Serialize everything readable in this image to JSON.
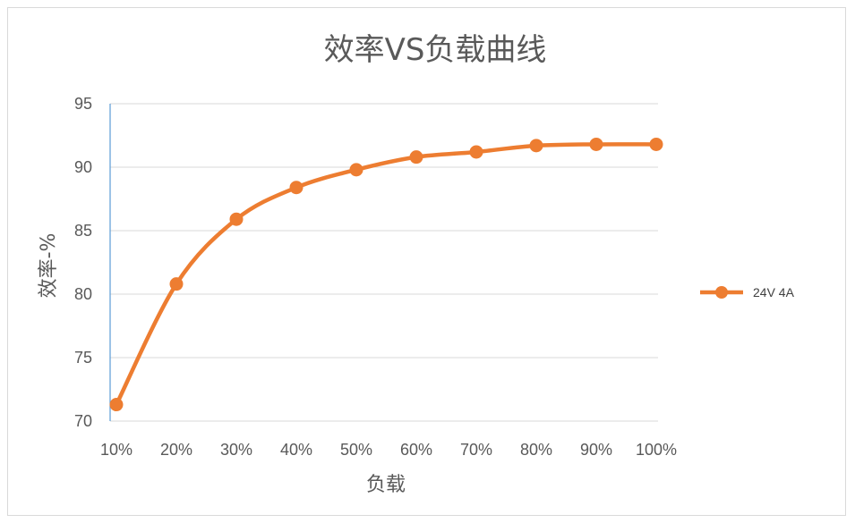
{
  "chart_data": {
    "type": "line",
    "title": "效率VS负载曲线",
    "xlabel": "负载",
    "ylabel": "效率-%",
    "categories": [
      "10%",
      "20%",
      "30%",
      "40%",
      "50%",
      "60%",
      "70%",
      "80%",
      "90%",
      "100%"
    ],
    "series": [
      {
        "name": "24V 4A",
        "color": "#ed7d31",
        "values": [
          71.3,
          80.8,
          85.9,
          88.4,
          89.8,
          90.8,
          91.2,
          91.7,
          91.8,
          91.8
        ]
      }
    ],
    "ylim": [
      70,
      95
    ],
    "yticks": [
      70,
      75,
      80,
      85,
      90,
      95
    ],
    "grid": true,
    "legend": "right"
  }
}
